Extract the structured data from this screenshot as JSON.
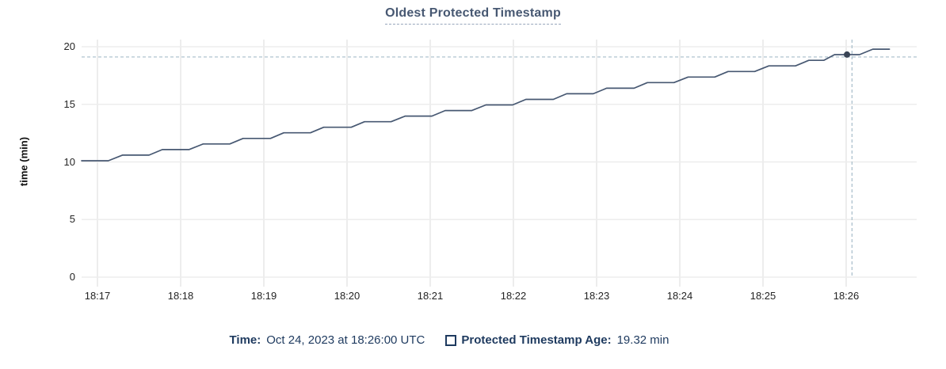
{
  "title": "Oldest Protected Timestamp",
  "colors": {
    "line": "#475872",
    "dot": "#394455",
    "crosshair": "#a7bdc9",
    "grid": "#ededed",
    "title": "#475872",
    "title_underline": "#97a6bb",
    "axis_text": "#242424",
    "legend_text": "#1e3a5f"
  },
  "chart_data": {
    "type": "line",
    "title": "Oldest Protected Timestamp",
    "xlabel": "",
    "ylabel": "time (min)",
    "ylim": [
      0,
      20
    ],
    "yticks": [
      0,
      5,
      10,
      15,
      20
    ],
    "xlim": [
      -0.19,
      9.85
    ],
    "x_units": "minutes after 18:17 UTC",
    "grid": true,
    "legend_position": "bottom",
    "xticks": [
      {
        "t": 0,
        "label": "18:17"
      },
      {
        "t": 1,
        "label": "18:18"
      },
      {
        "t": 2,
        "label": "18:19"
      },
      {
        "t": 3,
        "label": "18:20"
      },
      {
        "t": 4,
        "label": "18:21"
      },
      {
        "t": 5,
        "label": "18:22"
      },
      {
        "t": 6,
        "label": "18:23"
      },
      {
        "t": 7,
        "label": "18:24"
      },
      {
        "t": 8,
        "label": "18:25"
      },
      {
        "t": 9,
        "label": "18:26"
      }
    ],
    "series": [
      {
        "name": "Protected Timestamp Age",
        "color": "#475872",
        "points": [
          [
            -0.19,
            10.1
          ],
          [
            0.13,
            10.1
          ],
          [
            0.3,
            10.59
          ],
          [
            0.62,
            10.59
          ],
          [
            0.78,
            11.07
          ],
          [
            1.1,
            11.07
          ],
          [
            1.27,
            11.56
          ],
          [
            1.59,
            11.56
          ],
          [
            1.75,
            12.04
          ],
          [
            2.08,
            12.04
          ],
          [
            2.24,
            12.53
          ],
          [
            2.56,
            12.53
          ],
          [
            2.72,
            13.01
          ],
          [
            3.05,
            13.01
          ],
          [
            3.21,
            13.49
          ],
          [
            3.53,
            13.49
          ],
          [
            3.7,
            13.98
          ],
          [
            4.02,
            13.98
          ],
          [
            4.18,
            14.46
          ],
          [
            4.5,
            14.46
          ],
          [
            4.67,
            14.95
          ],
          [
            4.99,
            14.95
          ],
          [
            5.15,
            15.43
          ],
          [
            5.48,
            15.43
          ],
          [
            5.64,
            15.92
          ],
          [
            5.96,
            15.92
          ],
          [
            6.12,
            16.4
          ],
          [
            6.45,
            16.4
          ],
          [
            6.61,
            16.89
          ],
          [
            6.93,
            16.89
          ],
          [
            7.1,
            17.37
          ],
          [
            7.42,
            17.37
          ],
          [
            7.58,
            17.85
          ],
          [
            7.9,
            17.85
          ],
          [
            8.07,
            18.34
          ],
          [
            8.39,
            18.34
          ],
          [
            8.55,
            18.82
          ],
          [
            8.73,
            18.82
          ],
          [
            8.86,
            19.31
          ],
          [
            9.16,
            19.31
          ],
          [
            9.32,
            19.79
          ],
          [
            9.52,
            19.79
          ]
        ]
      }
    ],
    "cursor": {
      "t": 9.07,
      "v": 19.11
    },
    "hover_point": {
      "t": 9.01,
      "v": 19.32
    }
  },
  "legend": {
    "time_label": "Time:",
    "time_value": "Oct 24, 2023 at 18:26:00 UTC",
    "series_label": "Protected Timestamp Age:",
    "series_value": "19.32 min",
    "swatch": "unfilled-square"
  }
}
